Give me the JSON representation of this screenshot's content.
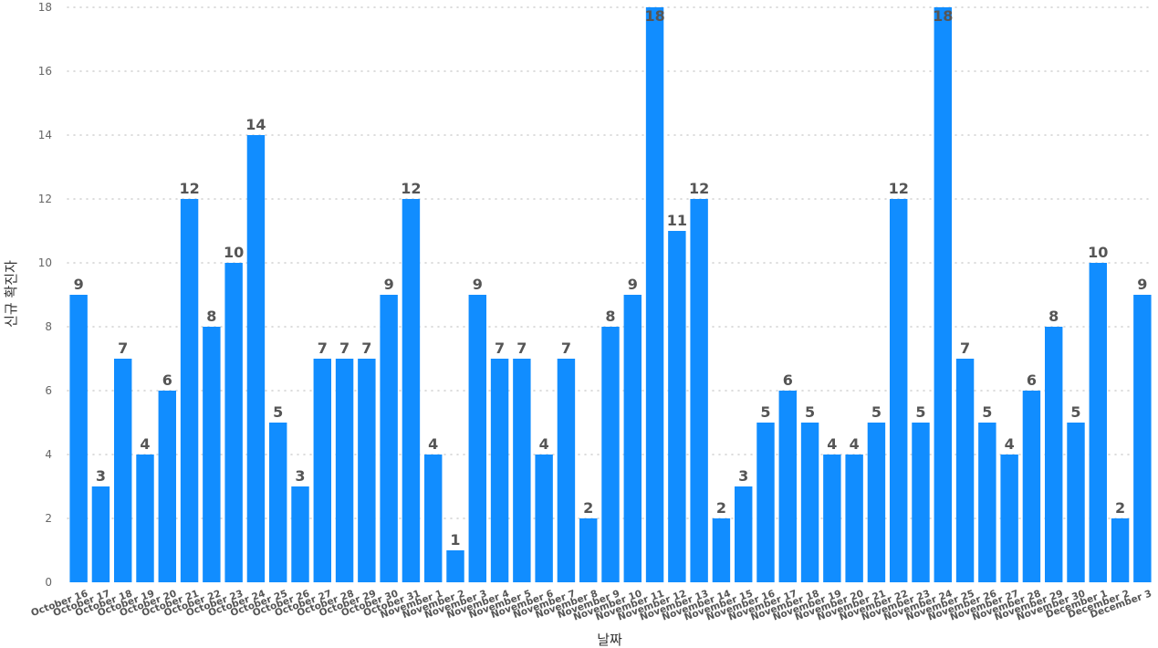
{
  "chart_data": {
    "type": "bar",
    "title": "",
    "xlabel": "날짜",
    "ylabel": "신규 확진자",
    "ylim": [
      0,
      18
    ],
    "yticks": [
      0,
      2,
      4,
      6,
      8,
      10,
      12,
      14,
      16,
      18
    ],
    "grid": true,
    "data_labels": true,
    "bar_color": "#118DFF",
    "categories": [
      "October 16",
      "October 17",
      "October 18",
      "October 19",
      "October 20",
      "October 21",
      "October 22",
      "October 23",
      "October 24",
      "October 25",
      "October 26",
      "October 27",
      "October 28",
      "October 29",
      "October 30",
      "October 31",
      "November 1",
      "November 2",
      "November 3",
      "November 4",
      "November 5",
      "November 6",
      "November 7",
      "November 8",
      "November 9",
      "November 10",
      "November 11",
      "November 12",
      "November 13",
      "November 14",
      "November 15",
      "November 16",
      "November 17",
      "November 18",
      "November 19",
      "November 20",
      "November 21",
      "November 22",
      "November 23",
      "November 24",
      "November 25",
      "November 26",
      "November 27",
      "November 28",
      "November 29",
      "November 30",
      "December 1",
      "December 2",
      "December 3"
    ],
    "values": [
      9,
      3,
      7,
      4,
      6,
      12,
      8,
      10,
      14,
      5,
      3,
      7,
      7,
      7,
      9,
      12,
      4,
      1,
      9,
      7,
      7,
      4,
      7,
      2,
      8,
      9,
      18,
      11,
      12,
      2,
      3,
      5,
      6,
      5,
      4,
      4,
      5,
      12,
      5,
      18,
      7,
      5,
      4,
      6,
      8,
      5,
      10,
      2,
      9
    ]
  }
}
